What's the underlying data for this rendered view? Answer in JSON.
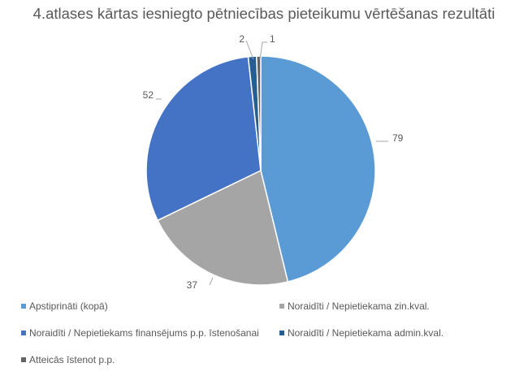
{
  "chart_data": {
    "type": "pie",
    "title": "4.atlases kārtas iesniegto pētniecības pieteikumu vērtēšanas rezultāti",
    "categories": [
      "Apstiprināti (kopā)",
      "Noraidīti / Nepietiekama zin.kval.",
      "Noraidīti / Nepietiekams finansējums p.p. īstenošanai",
      "Noraidīti / Nepietiekama admin.kval.",
      "Atteicās īstenot p.p."
    ],
    "values": [
      79,
      37,
      52,
      2,
      1
    ],
    "colors": [
      "#5B9BD5",
      "#A5A5A5",
      "#4472C4",
      "#255E91",
      "#636363"
    ],
    "data_labels": [
      "79",
      "37",
      "52",
      "2",
      "1"
    ],
    "start_angle": "12 o'clock, clockwise",
    "legend_position": "bottom"
  }
}
